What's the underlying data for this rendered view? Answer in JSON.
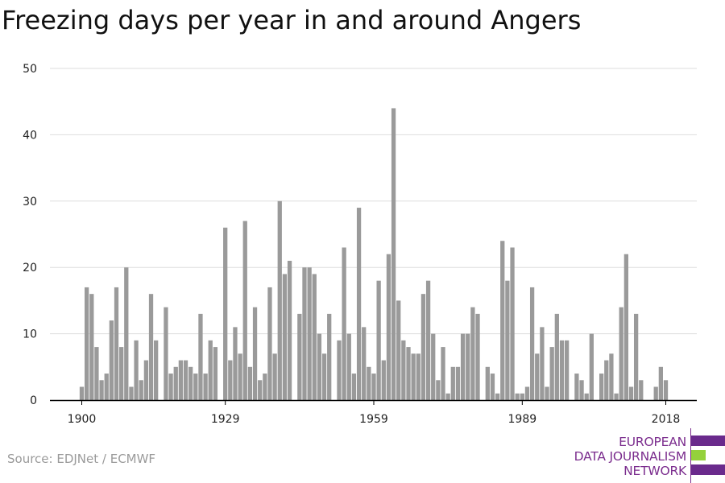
{
  "title": "Freezing days per year in and around Angers",
  "source": "Source: EDJNet / ECMWF",
  "logo": {
    "lines": [
      "EUROPEAN",
      "DATA JOURNALISM",
      "NETWORK"
    ],
    "colors": {
      "purple": "#6a2a8c",
      "green": "#94d13c",
      "text": "#7b2d8e"
    }
  },
  "chart_data": {
    "type": "bar",
    "title": "Freezing days per year in and around Angers",
    "xlabel": "",
    "ylabel": "",
    "ylim": [
      0,
      50
    ],
    "yticks": [
      0,
      10,
      20,
      30,
      40,
      50
    ],
    "xticks": [
      1900,
      1929,
      1959,
      1989,
      2018
    ],
    "x_start": 1900,
    "x_end": 2018,
    "bar_color": "#9a9a9a",
    "grid": true,
    "years": [
      1900,
      1901,
      1902,
      1903,
      1904,
      1905,
      1906,
      1907,
      1908,
      1909,
      1910,
      1911,
      1912,
      1913,
      1914,
      1915,
      1916,
      1917,
      1918,
      1919,
      1920,
      1921,
      1922,
      1923,
      1924,
      1925,
      1926,
      1927,
      1928,
      1929,
      1930,
      1931,
      1932,
      1933,
      1934,
      1935,
      1936,
      1937,
      1938,
      1939,
      1940,
      1941,
      1942,
      1943,
      1944,
      1945,
      1946,
      1947,
      1948,
      1949,
      1950,
      1951,
      1952,
      1953,
      1954,
      1955,
      1956,
      1957,
      1958,
      1959,
      1960,
      1961,
      1962,
      1963,
      1964,
      1965,
      1966,
      1967,
      1968,
      1969,
      1970,
      1971,
      1972,
      1973,
      1974,
      1975,
      1976,
      1977,
      1978,
      1979,
      1980,
      1981,
      1982,
      1983,
      1984,
      1985,
      1986,
      1987,
      1988,
      1989,
      1990,
      1991,
      1992,
      1993,
      1994,
      1995,
      1996,
      1997,
      1998,
      1999,
      2000,
      2001,
      2002,
      2003,
      2004,
      2005,
      2006,
      2007,
      2008,
      2009,
      2010,
      2011,
      2012,
      2013,
      2014,
      2015,
      2016,
      2017,
      2018
    ],
    "values": [
      2,
      17,
      16,
      8,
      3,
      4,
      12,
      17,
      8,
      20,
      2,
      9,
      3,
      6,
      16,
      9,
      0,
      14,
      4,
      5,
      6,
      6,
      5,
      4,
      13,
      4,
      9,
      8,
      0,
      26,
      6,
      11,
      7,
      27,
      5,
      14,
      3,
      4,
      17,
      7,
      30,
      19,
      21,
      0,
      13,
      20,
      20,
      19,
      10,
      7,
      13,
      0,
      9,
      23,
      10,
      4,
      29,
      11,
      5,
      4,
      18,
      6,
      22,
      44,
      15,
      9,
      8,
      7,
      7,
      16,
      18,
      10,
      3,
      8,
      1,
      5,
      5,
      10,
      10,
      14,
      13,
      0,
      5,
      4,
      1,
      24,
      18,
      23,
      1,
      1,
      2,
      17,
      7,
      11,
      2,
      8,
      13,
      9,
      9,
      0,
      4,
      3,
      1,
      10,
      0,
      4,
      6,
      7,
      1,
      14,
      22,
      2,
      13,
      3,
      0,
      0,
      2,
      5,
      3
    ]
  }
}
